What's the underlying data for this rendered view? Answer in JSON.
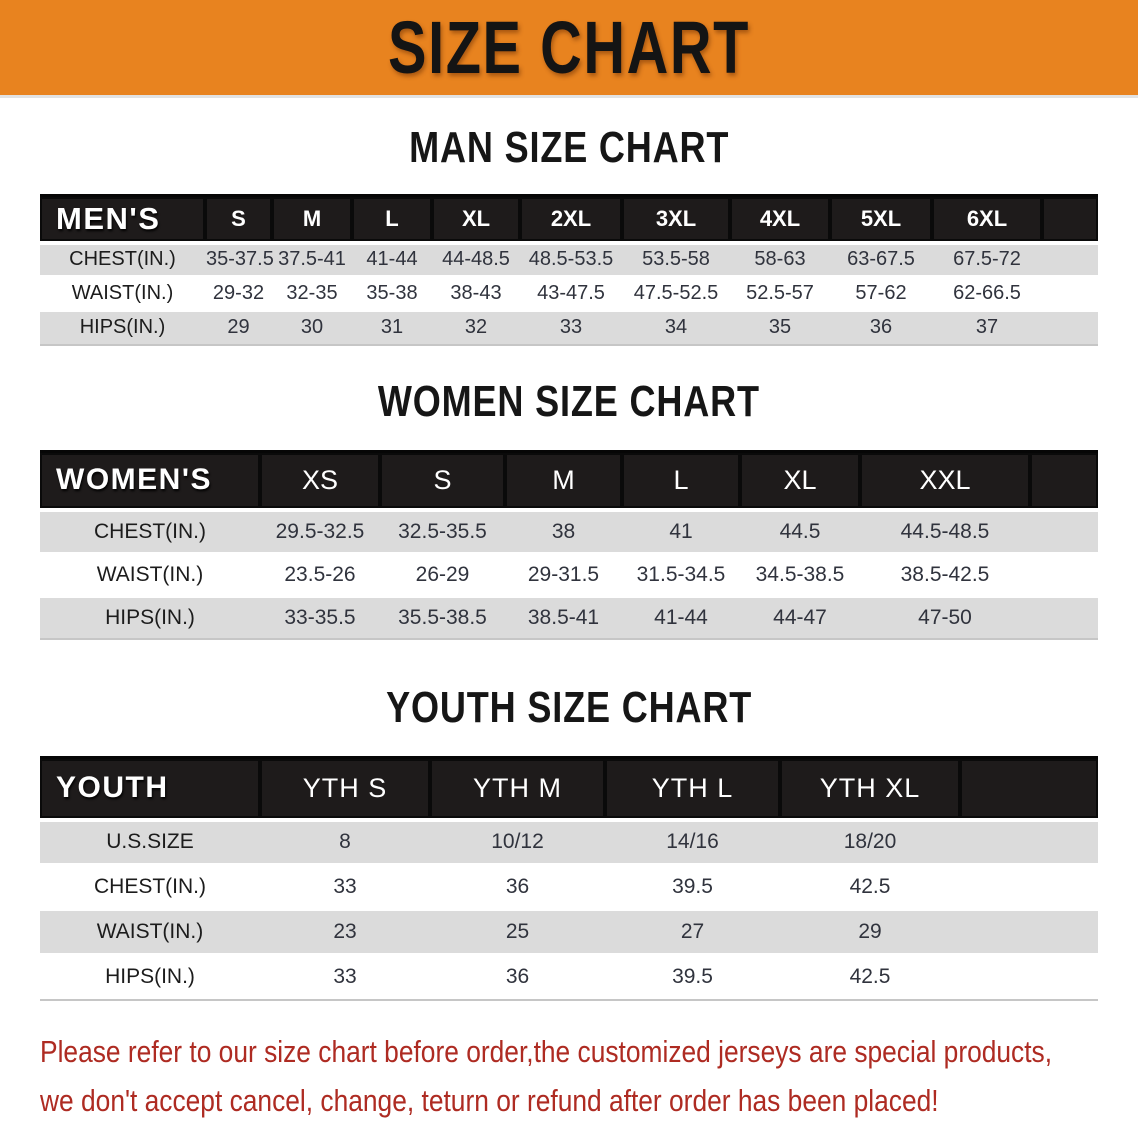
{
  "banner": {
    "title": "SIZE CHART"
  },
  "colors": {
    "banner_bg": "#E8831F",
    "header_bar": "#1E1B1B",
    "shaded_row": "#DBDBDB",
    "plain_row": "#FFFFFF",
    "notice_text": "#AE2B22"
  },
  "sections": [
    {
      "heading": "MAN SIZE CHART",
      "table": {
        "corner": "MEN'S",
        "columns": [
          "S",
          "M",
          "L",
          "XL",
          "2XL",
          "3XL",
          "4XL",
          "5XL",
          "6XL"
        ],
        "rows": [
          {
            "label": "CHEST(IN.)",
            "values": [
              "35-37.5",
              "37.5-41",
              "41-44",
              "44-48.5",
              "48.5-53.5",
              "53.5-58",
              "58-63",
              "63-67.5",
              "67.5-72"
            ]
          },
          {
            "label": "WAIST(IN.)",
            "values": [
              "29-32",
              "32-35",
              "35-38",
              "38-43",
              "43-47.5",
              "47.5-52.5",
              "52.5-57",
              "57-62",
              "62-66.5"
            ]
          },
          {
            "label": "HIPS(IN.)",
            "values": [
              "29",
              "30",
              "31",
              "32",
              "33",
              "34",
              "35",
              "36",
              "37"
            ]
          }
        ]
      }
    },
    {
      "heading": "WOMEN SIZE CHART",
      "table": {
        "corner": "WOMEN'S",
        "columns": [
          "XS",
          "S",
          "M",
          "L",
          "XL",
          "XXL"
        ],
        "rows": [
          {
            "label": "CHEST(IN.)",
            "values": [
              "29.5-32.5",
              "32.5-35.5",
              "38",
              "41",
              "44.5",
              "44.5-48.5"
            ]
          },
          {
            "label": "WAIST(IN.)",
            "values": [
              "23.5-26",
              "26-29",
              "29-31.5",
              "31.5-34.5",
              "34.5-38.5",
              "38.5-42.5"
            ]
          },
          {
            "label": "HIPS(IN.)",
            "values": [
              "33-35.5",
              "35.5-38.5",
              "38.5-41",
              "41-44",
              "44-47",
              "47-50"
            ]
          }
        ]
      }
    },
    {
      "heading": "YOUTH SIZE CHART",
      "table": {
        "corner": "YOUTH",
        "columns": [
          "YTH S",
          "YTH M",
          "YTH L",
          "YTH XL"
        ],
        "rows": [
          {
            "label": "U.S.SIZE",
            "values": [
              "8",
              "10/12",
              "14/16",
              "18/20"
            ]
          },
          {
            "label": "CHEST(IN.)",
            "values": [
              "33",
              "36",
              "39.5",
              "42.5"
            ]
          },
          {
            "label": "WAIST(IN.)",
            "values": [
              "23",
              "25",
              "27",
              "29"
            ]
          },
          {
            "label": "HIPS(IN.)",
            "values": [
              "33",
              "36",
              "39.5",
              "42.5"
            ]
          }
        ]
      }
    }
  ],
  "footer": {
    "line1": "Please refer to our size chart before order,the customized jerseys are special products,",
    "line2": "we don't accept cancel, change, teturn or refund after order has been placed!"
  }
}
